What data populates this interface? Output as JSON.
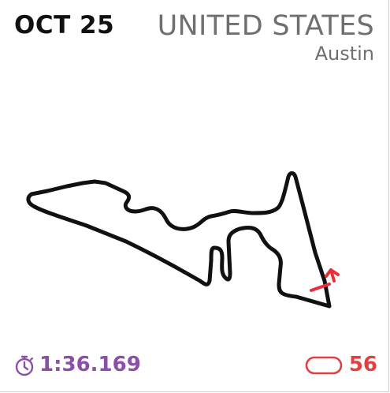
{
  "race": {
    "date": "OCT 25",
    "country": "UNITED STATES",
    "city": "Austin"
  },
  "stats": {
    "lap_record": "1:36.169",
    "laps": "56"
  },
  "icons": {
    "lap_record_icon": "stopwatch-icon",
    "laps_icon": "lap-loop-icon",
    "start_finish_icon": "start-finish-marker"
  },
  "colors": {
    "track": "#111111",
    "date": "#111111",
    "country": "#6f6f6f",
    "lap_record": "#8b4fa8",
    "laps": "#e0403f",
    "start_finish": "#e8303a"
  }
}
